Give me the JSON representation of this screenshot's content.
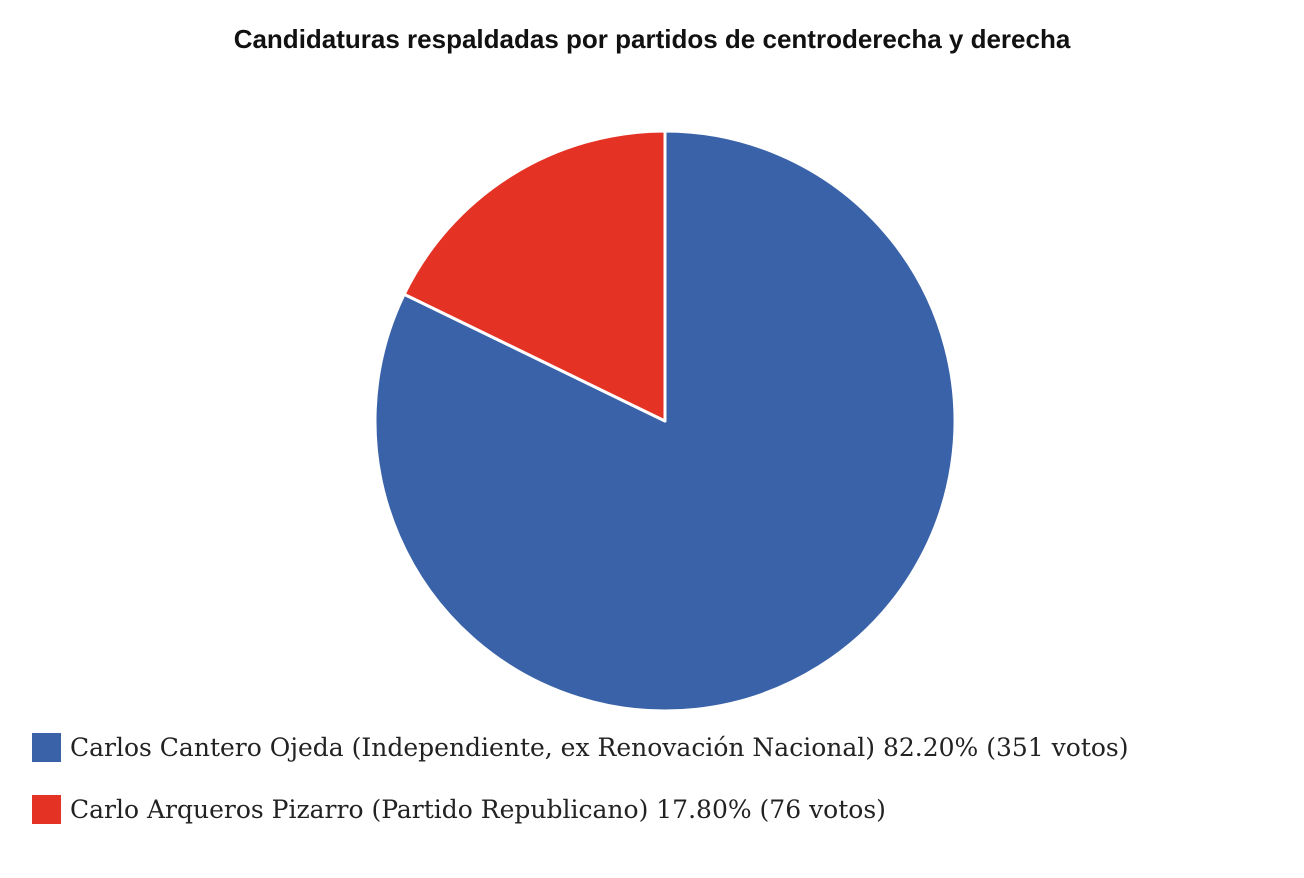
{
  "chart_data": {
    "type": "pie",
    "title": "Candidaturas respaldadas por partidos de centroderecha y derecha",
    "start_angle_deg": 0,
    "direction": "clockwise",
    "slices": [
      {
        "name": "Carlos Cantero Ojeda (Independiente, ex Renovación Nacional)",
        "percent": 82.2,
        "votes": 351,
        "color": "#3A62A9",
        "legend_label": "Carlos Cantero Ojeda (Independiente, ex Renovación Nacional) 82.20% (351 votos)"
      },
      {
        "name": "Carlo Arqueros Pizarro (Partido Republicano)",
        "percent": 17.8,
        "votes": 76,
        "color": "#E43224",
        "legend_label": "Carlo Arqueros Pizarro (Partido Republicano) 17.80% (76 votos)"
      }
    ],
    "legend_position": "bottom-left"
  }
}
